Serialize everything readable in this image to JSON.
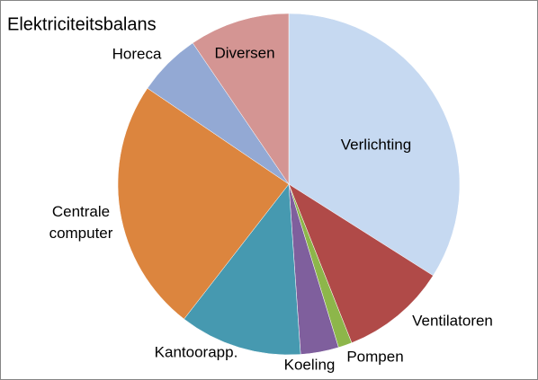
{
  "chart_data": {
    "type": "pie",
    "title": "Elektriciteitsbalans",
    "categories": [
      "Verlichting",
      "Ventilatoren",
      "Pompen",
      "Koeling",
      "Kantoorapp.",
      "Centrale computer",
      "Horeca",
      "Diversen"
    ],
    "values": [
      34,
      10,
      1.3,
      3.6,
      11.6,
      24,
      6,
      9.5
    ],
    "colors": [
      "#c6d9f1",
      "#b04a48",
      "#8db64a",
      "#7f5f9d",
      "#4699b0",
      "#dc853e",
      "#93a9d4",
      "#d49593"
    ]
  }
}
